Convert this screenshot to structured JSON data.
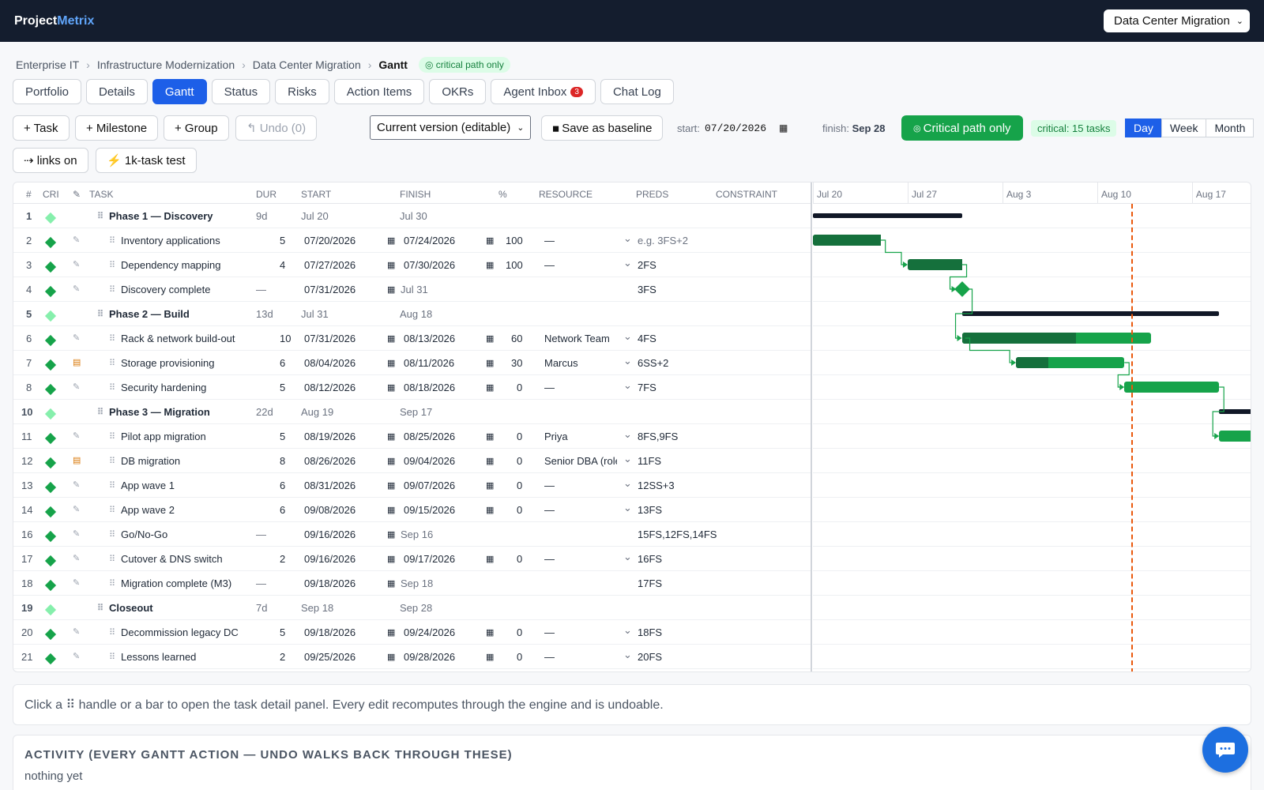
{
  "brand": {
    "part1": "Project",
    "part2": "Metrix"
  },
  "project_select": {
    "value": "Data Center Migration"
  },
  "breadcrumb": [
    "Enterprise IT",
    "Infrastructure Modernization",
    "Data Center Migration",
    "Gantt"
  ],
  "breadcrumb_badge": "critical path only",
  "tabs": [
    "Portfolio",
    "Details",
    "Gantt",
    "Status",
    "Risks",
    "Action Items",
    "OKRs",
    "Agent Inbox",
    "Chat Log"
  ],
  "agent_inbox_count": "3",
  "toolbar": {
    "task": "+ Task",
    "milestone": "+ Milestone",
    "group": "+ Group",
    "undo": "Undo (0)",
    "version": "Current version (editable)",
    "baseline": "Save as baseline",
    "start_label": "start:",
    "start_value": "07/20/2026",
    "finish_label": "finish:",
    "finish_value": "Sep 28",
    "critical_btn": "Critical path only",
    "critical_count": "critical: 15 tasks",
    "links": "links on",
    "stress": "1k-task test"
  },
  "zoom": [
    "Day",
    "Week",
    "Month"
  ],
  "columns": [
    "#",
    "CRI",
    "TASK",
    "DUR",
    "START",
    "FINISH",
    "%",
    "RESOURCE",
    "PREDS",
    "CONSTRAINT"
  ],
  "rows": [
    {
      "n": "1",
      "type": "group",
      "crit_light": true,
      "task": "Phase 1 — Discovery",
      "dur": "9d",
      "start": "Jul 20",
      "finish": "Jul 30"
    },
    {
      "n": "2",
      "type": "task",
      "task": "Inventory applications",
      "dur": "5",
      "start": "07/20/2026",
      "finish": "07/24/2026",
      "pct": "100",
      "res": "—",
      "preds": "e.g. 3FS+2",
      "preds_placeholder": true
    },
    {
      "n": "3",
      "type": "task",
      "task": "Dependency mapping",
      "dur": "4",
      "start": "07/27/2026",
      "finish": "07/30/2026",
      "pct": "100",
      "res": "—",
      "preds": "2FS"
    },
    {
      "n": "4",
      "type": "milestone",
      "task": "Discovery complete",
      "dur": "—",
      "start": "07/31/2026",
      "finish": "Jul 31",
      "preds": "3FS"
    },
    {
      "n": "5",
      "type": "group",
      "crit_light": true,
      "task": "Phase 2 — Build",
      "dur": "13d",
      "start": "Jul 31",
      "finish": "Aug 18"
    },
    {
      "n": "6",
      "type": "task",
      "task": "Rack & network build-out",
      "dur": "10",
      "start": "07/31/2026",
      "finish": "08/13/2026",
      "pct": "60",
      "res": "Network Team",
      "preds": "4FS"
    },
    {
      "n": "7",
      "type": "task",
      "note": true,
      "task": "Storage provisioning",
      "dur": "6",
      "start": "08/04/2026",
      "finish": "08/11/2026",
      "pct": "30",
      "res": "Marcus",
      "preds": "6SS+2"
    },
    {
      "n": "8",
      "type": "task",
      "task": "Security hardening",
      "dur": "5",
      "start": "08/12/2026",
      "finish": "08/18/2026",
      "pct": "0",
      "res": "—",
      "preds": "7FS"
    },
    {
      "n": "10",
      "type": "group",
      "crit_light": true,
      "task": "Phase 3 — Migration",
      "dur": "22d",
      "start": "Aug 19",
      "finish": "Sep 17"
    },
    {
      "n": "11",
      "type": "task",
      "task": "Pilot app migration",
      "dur": "5",
      "start": "08/19/2026",
      "finish": "08/25/2026",
      "pct": "0",
      "res": "Priya",
      "preds": "8FS,9FS"
    },
    {
      "n": "12",
      "type": "task",
      "note": true,
      "task": "DB migration",
      "dur": "8",
      "start": "08/26/2026",
      "finish": "09/04/2026",
      "pct": "0",
      "res": "Senior DBA (role",
      "preds": "11FS"
    },
    {
      "n": "13",
      "type": "task",
      "task": "App wave 1",
      "dur": "6",
      "start": "08/31/2026",
      "finish": "09/07/2026",
      "pct": "0",
      "res": "—",
      "preds": "12SS+3"
    },
    {
      "n": "14",
      "type": "task",
      "task": "App wave 2",
      "dur": "6",
      "start": "09/08/2026",
      "finish": "09/15/2026",
      "pct": "0",
      "res": "—",
      "preds": "13FS"
    },
    {
      "n": "16",
      "type": "milestone",
      "task": "Go/No-Go",
      "dur": "—",
      "start": "09/16/2026",
      "finish": "Sep 16",
      "preds": "15FS,12FS,14FS"
    },
    {
      "n": "17",
      "type": "task",
      "task": "Cutover & DNS switch",
      "dur": "2",
      "start": "09/16/2026",
      "finish": "09/17/2026",
      "pct": "0",
      "res": "—",
      "preds": "16FS"
    },
    {
      "n": "18",
      "type": "milestone",
      "task": "Migration complete (M3)",
      "dur": "—",
      "start": "09/18/2026",
      "finish": "Sep 18",
      "preds": "17FS"
    },
    {
      "n": "19",
      "type": "group",
      "crit_light": true,
      "task": "Closeout",
      "dur": "7d",
      "start": "Sep 18",
      "finish": "Sep 28"
    },
    {
      "n": "20",
      "type": "task",
      "task": "Decommission legacy DC",
      "dur": "5",
      "start": "09/18/2026",
      "finish": "09/24/2026",
      "pct": "0",
      "res": "—",
      "preds": "18FS"
    },
    {
      "n": "21",
      "type": "task",
      "task": "Lessons learned",
      "dur": "2",
      "start": "09/25/2026",
      "finish": "09/28/2026",
      "pct": "0",
      "res": "—",
      "preds": "20FS"
    }
  ],
  "timeline": {
    "weeks": [
      "Jul 20",
      "Jul 27",
      "Aug 3",
      "Aug 10",
      "Aug 17"
    ],
    "origin": "2026-07-20",
    "today": "2026-08-12"
  },
  "hint": "Click a ⠿ handle or a bar to open the task detail panel. Every edit recomputes through the engine and is undoable.",
  "activity": {
    "title": "ACTIVITY (EVERY GANTT ACTION — UNDO WALKS BACK THROUGH THESE)",
    "empty": "nothing yet"
  },
  "colors": {
    "accent": "#1d5fe8",
    "critical": "#16a34a",
    "critical_done": "#15703c",
    "today": "#ea580c",
    "topbar": "#141d2e"
  }
}
